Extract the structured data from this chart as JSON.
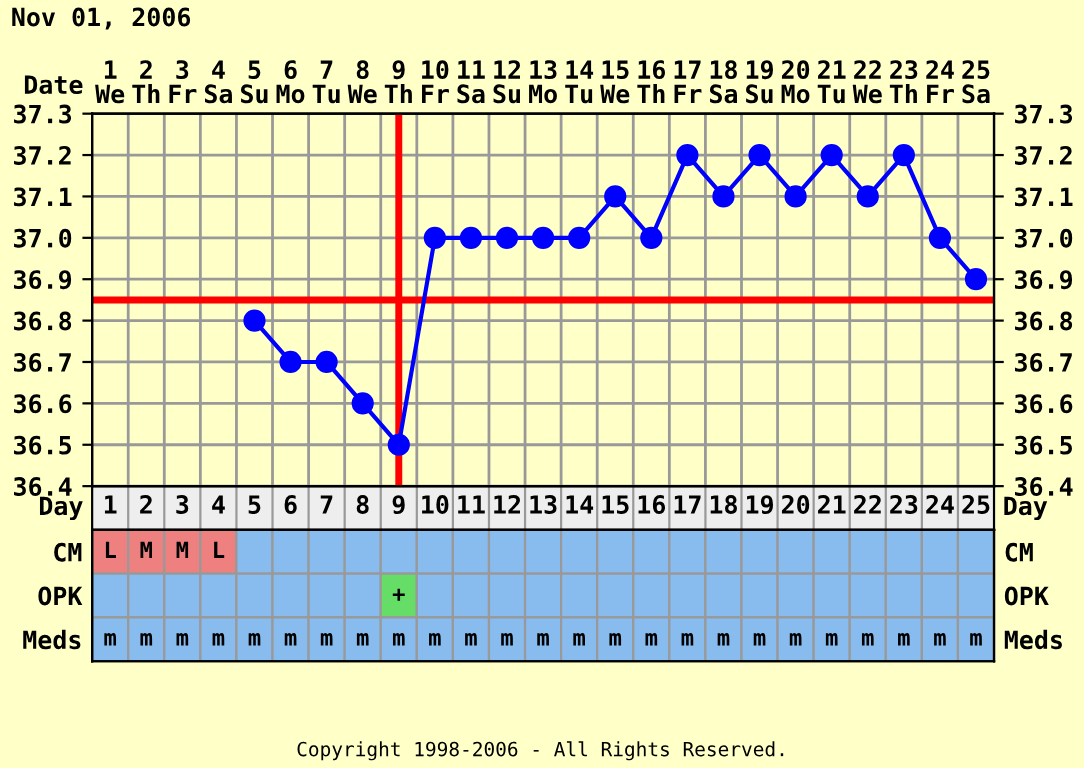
{
  "chart_data": [
    {
      "type": "line",
      "title": "Nov 01, 2006",
      "xlabel": "Date",
      "categories": [
        "1\nWe",
        "2\nTh",
        "3\nFr",
        "4\nSa",
        "5\nSu",
        "6\nMo",
        "7\nTu",
        "8\nWe",
        "9\nTh",
        "10\nFr",
        "11\nSa",
        "12\nSu",
        "13\nMo",
        "14\nTu",
        "15\nWe",
        "16\nTh",
        "17\nFr",
        "18\nSa",
        "19\nSu",
        "20\nMo",
        "21\nTu",
        "22\nWe",
        "23\nTh",
        "24\nFr",
        "25\nSa"
      ],
      "series": [
        {
          "color": "#0000ff",
          "values": [
            null,
            null,
            null,
            null,
            36.8,
            36.7,
            36.7,
            36.6,
            36.5,
            37.0,
            37.0,
            37.0,
            37.0,
            37.0,
            37.1,
            37.0,
            37.2,
            37.1,
            37.2,
            37.1,
            37.2,
            37.1,
            37.2,
            37.0,
            36.9
          ]
        }
      ],
      "ylim": [
        36.4,
        37.3
      ],
      "yticks": [
        36.4,
        36.5,
        36.6,
        36.7,
        36.8,
        36.9,
        {
          "value": 37,
          "label": "37.0"
        },
        37.1,
        37.2,
        37.3
      ],
      "y2lim": [
        36.4,
        37.3
      ],
      "y2ticks": [
        36.4,
        36.5,
        36.6,
        36.7,
        36.8,
        36.9,
        {
          "value": 37,
          "label": "37.0"
        },
        37.1,
        37.2,
        37.3
      ],
      "ref_lines": [
        {
          "axis": "x",
          "value": "9\nTh",
          "color": "#ff0000"
        },
        {
          "axis": "y",
          "value": 36.85,
          "color": "#ff0000"
        }
      ],
      "grid": true,
      "marker": "circle",
      "line_style": "solid"
    },
    {
      "type": "heatmap",
      "xlabel": "Day",
      "subtitle": "Copyright 1998-2006 - All Rights Reserved.",
      "categories": [
        "1",
        "2",
        "3",
        "4",
        "5",
        "6",
        "7",
        "8",
        "9",
        "10",
        "11",
        "12",
        "13",
        "14",
        "15",
        "16",
        "17",
        "18",
        "19",
        "20",
        "21",
        "22",
        "23",
        "24",
        "25"
      ],
      "y_categories": [
        "CM",
        "OPK",
        "Meds"
      ],
      "y2_categories": [
        "CM",
        "OPK",
        "Meds"
      ],
      "cells": [
        [
          null,
          null,
          null,
          null,
          null,
          null,
          null,
          null,
          null,
          null,
          null,
          null,
          null,
          null,
          null,
          null,
          null,
          null,
          null,
          null,
          null,
          null,
          null,
          null,
          null
        ],
        [
          null,
          null,
          null,
          null,
          null,
          null,
          null,
          null,
          null,
          null,
          null,
          null,
          null,
          null,
          null,
          null,
          null,
          null,
          null,
          null,
          null,
          null,
          null,
          null,
          null
        ],
        [
          null,
          null,
          null,
          null,
          null,
          null,
          null,
          null,
          null,
          null,
          null,
          null,
          null,
          null,
          null,
          null,
          null,
          null,
          null,
          null,
          null,
          null,
          null,
          null,
          null
        ]
      ],
      "cell_labels": [
        [
          "L",
          "M",
          "M",
          "L",
          null,
          null,
          null,
          null,
          null,
          null,
          null,
          null,
          null,
          null,
          null,
          null,
          null,
          null,
          null,
          null,
          null,
          null,
          null,
          null,
          null
        ],
        [
          null,
          null,
          null,
          null,
          null,
          null,
          null,
          null,
          "+",
          null,
          null,
          null,
          null,
          null,
          null,
          null,
          null,
          null,
          null,
          null,
          null,
          null,
          null,
          null,
          null
        ],
        [
          "m",
          "m",
          "m",
          "m",
          "m",
          "m",
          "m",
          "m",
          "m",
          "m",
          "m",
          "m",
          "m",
          "m",
          "m",
          "m",
          "m",
          "m",
          "m",
          "m",
          "m",
          "m",
          "m",
          "m",
          "m"
        ]
      ]
    }
  ]
}
